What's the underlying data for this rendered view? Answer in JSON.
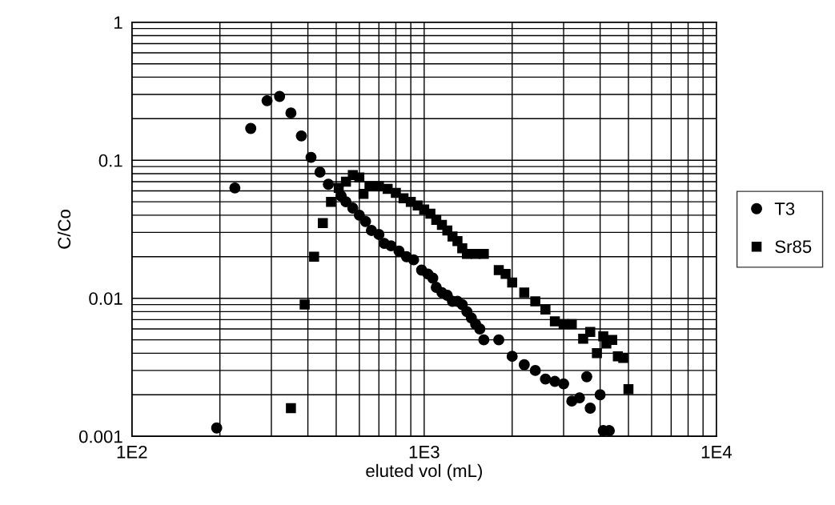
{
  "chart_data": {
    "type": "scatter",
    "xlabel": "eluted vol (mL)",
    "ylabel": "C/Co",
    "log": "xy",
    "grid": true,
    "legend": "right",
    "xlim": [
      100,
      10000
    ],
    "xticks": [
      {
        "value": 100,
        "label": "1E2"
      },
      {
        "value": 1000,
        "label": "1E3"
      },
      {
        "value": 10000,
        "label": "1E4"
      }
    ],
    "ylim": [
      0.001,
      1
    ],
    "yticks": [
      0.001,
      0.01,
      0.1,
      1
    ],
    "series": [
      {
        "name": "T3",
        "color": "#000000",
        "marker": "circle",
        "x": [
          195,
          225,
          255,
          290,
          320,
          350,
          380,
          410,
          440,
          470,
          500,
          520,
          540,
          570,
          600,
          630,
          660,
          700,
          730,
          770,
          820,
          870,
          920,
          980,
          1030,
          1070,
          1100,
          1150,
          1200,
          1250,
          1300,
          1350,
          1400,
          1450,
          1500,
          1550,
          1600,
          1800,
          2000,
          2200,
          2400,
          2600,
          2800,
          3000,
          3200,
          3400,
          3600,
          3700,
          4000,
          4100,
          4300
        ],
        "values": [
          0.00115,
          0.063,
          0.17,
          0.27,
          0.29,
          0.22,
          0.15,
          0.105,
          0.082,
          0.067,
          null,
          0.055,
          0.05,
          0.045,
          0.04,
          0.036,
          0.031,
          0.029,
          0.025,
          0.024,
          0.022,
          0.02,
          0.019,
          0.016,
          0.015,
          0.014,
          0.012,
          0.011,
          0.0105,
          0.0095,
          0.0095,
          0.009,
          0.008,
          0.0072,
          0.0065,
          0.006,
          0.005,
          0.005,
          0.0038,
          0.0033,
          0.003,
          0.0026,
          0.0025,
          0.0024,
          0.0018,
          0.0019,
          0.0027,
          0.0016,
          0.002,
          0.0011,
          0.0011
        ]
      },
      {
        "name": "Sr85",
        "color": "#000000",
        "marker": "square",
        "x": [
          350,
          390,
          420,
          450,
          480,
          510,
          540,
          570,
          600,
          620,
          650,
          700,
          750,
          800,
          850,
          900,
          950,
          1000,
          1050,
          1100,
          1150,
          1200,
          1250,
          1300,
          1350,
          1400,
          1500,
          1600,
          1800,
          1900,
          2000,
          2200,
          2400,
          2600,
          2800,
          3000,
          3200,
          3400,
          3500,
          3700,
          3900,
          4100,
          4200,
          4400,
          4600,
          4800,
          5000
        ],
        "values": [
          0.0016,
          0.009,
          0.02,
          0.035,
          0.05,
          0.063,
          0.07,
          0.078,
          0.075,
          0.057,
          0.065,
          0.065,
          0.062,
          0.058,
          0.053,
          0.05,
          0.047,
          0.044,
          0.041,
          0.037,
          0.034,
          0.031,
          0.028,
          0.026,
          0.023,
          0.021,
          0.021,
          0.021,
          0.016,
          0.015,
          0.013,
          0.011,
          0.0095,
          0.0083,
          0.0068,
          0.0065,
          0.0065,
          null,
          0.0051,
          0.0057,
          0.004,
          0.0053,
          0.0047,
          0.005,
          0.0038,
          0.0037,
          0.0022
        ]
      }
    ]
  }
}
